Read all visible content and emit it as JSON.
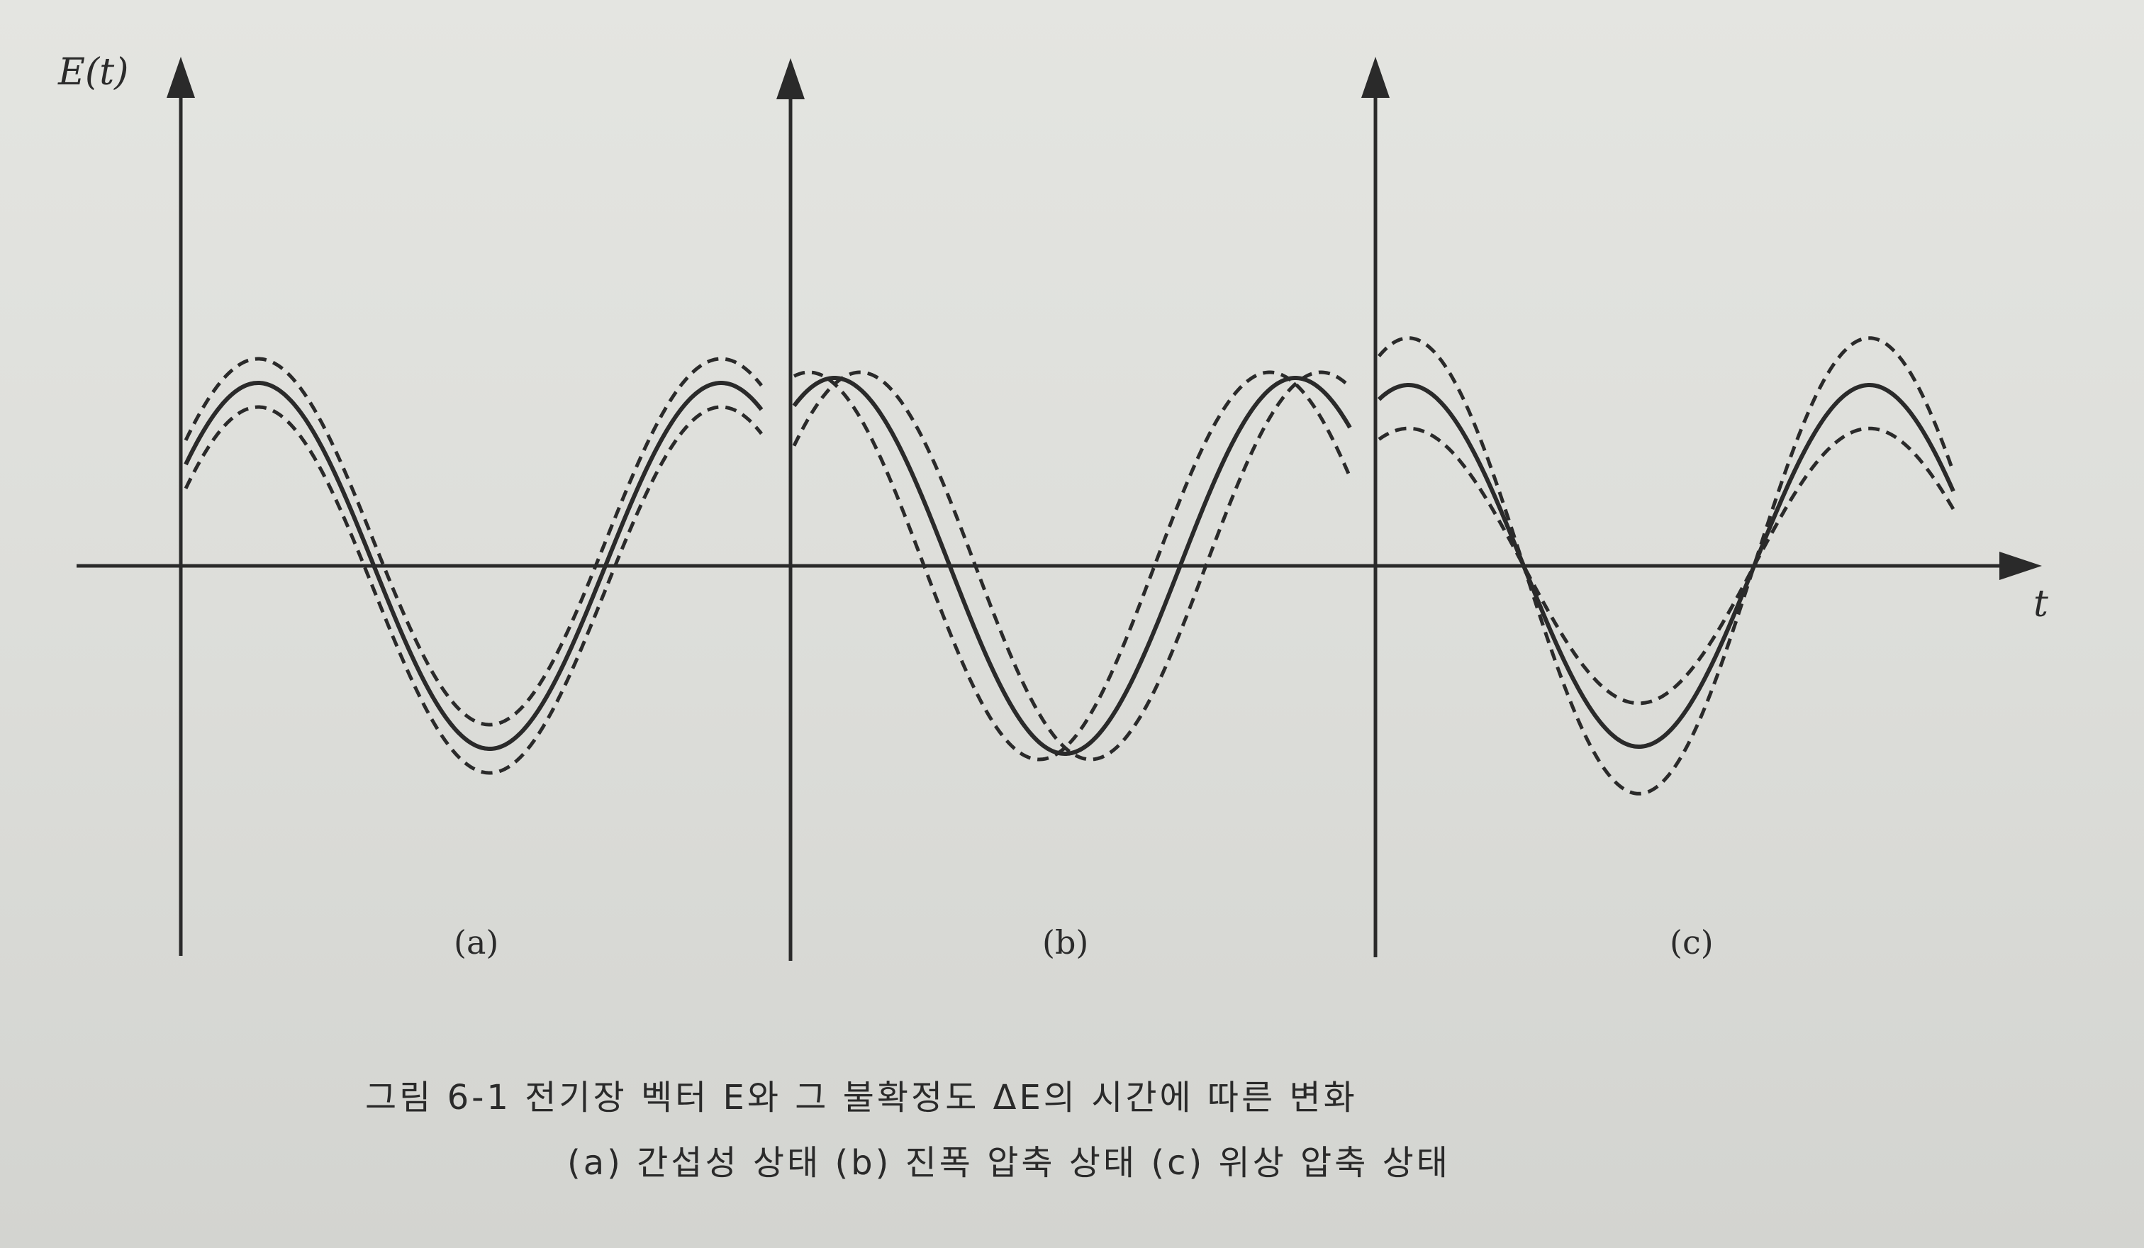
{
  "figure": {
    "y_axis_label": "E(t)",
    "x_axis_label": "t",
    "panels": [
      {
        "id": "a",
        "label": "(a)",
        "curve": "coherent",
        "amplitude_noise": "constant",
        "phase_noise": "constant"
      },
      {
        "id": "b",
        "label": "(b)",
        "curve": "amplitude-squeezed"
      },
      {
        "id": "c",
        "label": "(c)",
        "curve": "phase-squeezed"
      }
    ],
    "colors": {
      "ink": "#2a2a2a",
      "paper": "#dfe0dc"
    }
  },
  "caption": {
    "line1": "그림 6-1  전기장 벡터 E와 그 불확정도 ΔE의 시간에 따른 변화",
    "line2": "(a) 간섭성 상태 (b) 진폭 압축 상태 (c) 위상 압축 상태"
  }
}
